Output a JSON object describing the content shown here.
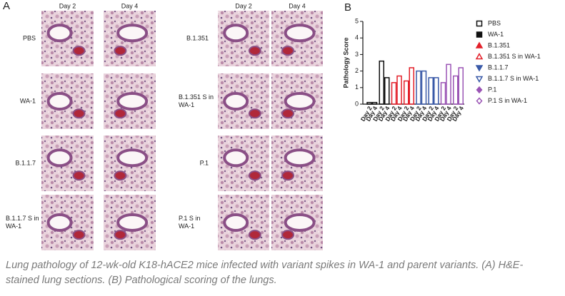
{
  "panel_a": {
    "label": "A",
    "columns": [
      "Day 2",
      "Day 4"
    ],
    "left_rows": [
      "PBS",
      "WA-1",
      "B.1.1.7",
      "B.1.1.7 S in WA-1"
    ],
    "right_rows": [
      "B.1.351",
      "B.1.351 S in WA-1",
      "P.1",
      "P.1 S in WA-1"
    ]
  },
  "chart_data": {
    "type": "bar",
    "panel_label": "B",
    "ylabel": "Pathology Score",
    "categories": [
      "Day 2",
      "Day 4"
    ],
    "series": [
      {
        "name": "PBS",
        "color": "#111111",
        "marker": "square-open",
        "values": [
          0.1,
          0.1
        ]
      },
      {
        "name": "WA-1",
        "color": "#111111",
        "marker": "square",
        "values": [
          2.6,
          1.6
        ]
      },
      {
        "name": "B.1.351",
        "color": "#e3202a",
        "marker": "triangle",
        "values": [
          1.3,
          1.7
        ]
      },
      {
        "name": "B.1.351 S in WA-1",
        "color": "#e3202a",
        "marker": "triangle-open",
        "values": [
          1.4,
          2.2
        ]
      },
      {
        "name": "B.1.1.7",
        "color": "#3a5aa8",
        "marker": "triangle-down",
        "values": [
          2.0,
          2.0
        ]
      },
      {
        "name": "B.1.1.7 S in WA-1",
        "color": "#3a5aa8",
        "marker": "triangle-down-open",
        "values": [
          1.6,
          1.6
        ]
      },
      {
        "name": "P.1",
        "color": "#9b55b5",
        "marker": "diamond",
        "values": [
          1.3,
          2.4
        ]
      },
      {
        "name": "P.1 S in WA-1",
        "color": "#9b55b5",
        "marker": "diamond-open",
        "values": [
          1.7,
          2.2
        ]
      }
    ],
    "ylim": [
      0,
      5
    ],
    "yticks": [
      0,
      1,
      2,
      3,
      4,
      5
    ]
  },
  "caption": "Lung pathology of 12-wk-old K18-hACE2 mice infected with variant spikes in WA-1 and parent variants. (A) H&E-stained lung sections. (B) Pathological scoring of the lungs."
}
